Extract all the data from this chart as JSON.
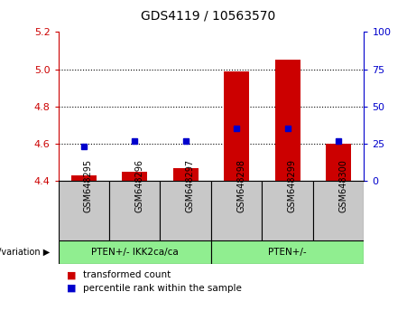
{
  "title": "GDS4119 / 10563570",
  "samples": [
    "GSM648295",
    "GSM648296",
    "GSM648297",
    "GSM648298",
    "GSM648299",
    "GSM648300"
  ],
  "red_values": [
    4.43,
    4.45,
    4.47,
    4.99,
    5.05,
    4.6
  ],
  "blue_values": [
    23,
    27,
    27,
    35,
    35,
    27
  ],
  "ylim_left": [
    4.4,
    5.2
  ],
  "ylim_right": [
    0,
    100
  ],
  "yticks_left": [
    4.4,
    4.6,
    4.8,
    5.0,
    5.2
  ],
  "yticks_right": [
    0,
    25,
    50,
    75,
    100
  ],
  "groups": [
    {
      "label": "PTEN+/- IKK2ca/ca",
      "indices": [
        0,
        1,
        2
      ],
      "color": "#90EE90"
    },
    {
      "label": "PTEN+/-",
      "indices": [
        3,
        4,
        5
      ],
      "color": "#90EE90"
    }
  ],
  "group_label_prefix": "genotype/variation",
  "bar_width": 0.5,
  "red_color": "#CC0000",
  "blue_color": "#0000CC",
  "left_axis_color": "#CC0000",
  "right_axis_color": "#0000CC",
  "background_label": "#C8C8C8",
  "legend_red": "transformed count",
  "legend_blue": "percentile rank within the sample"
}
